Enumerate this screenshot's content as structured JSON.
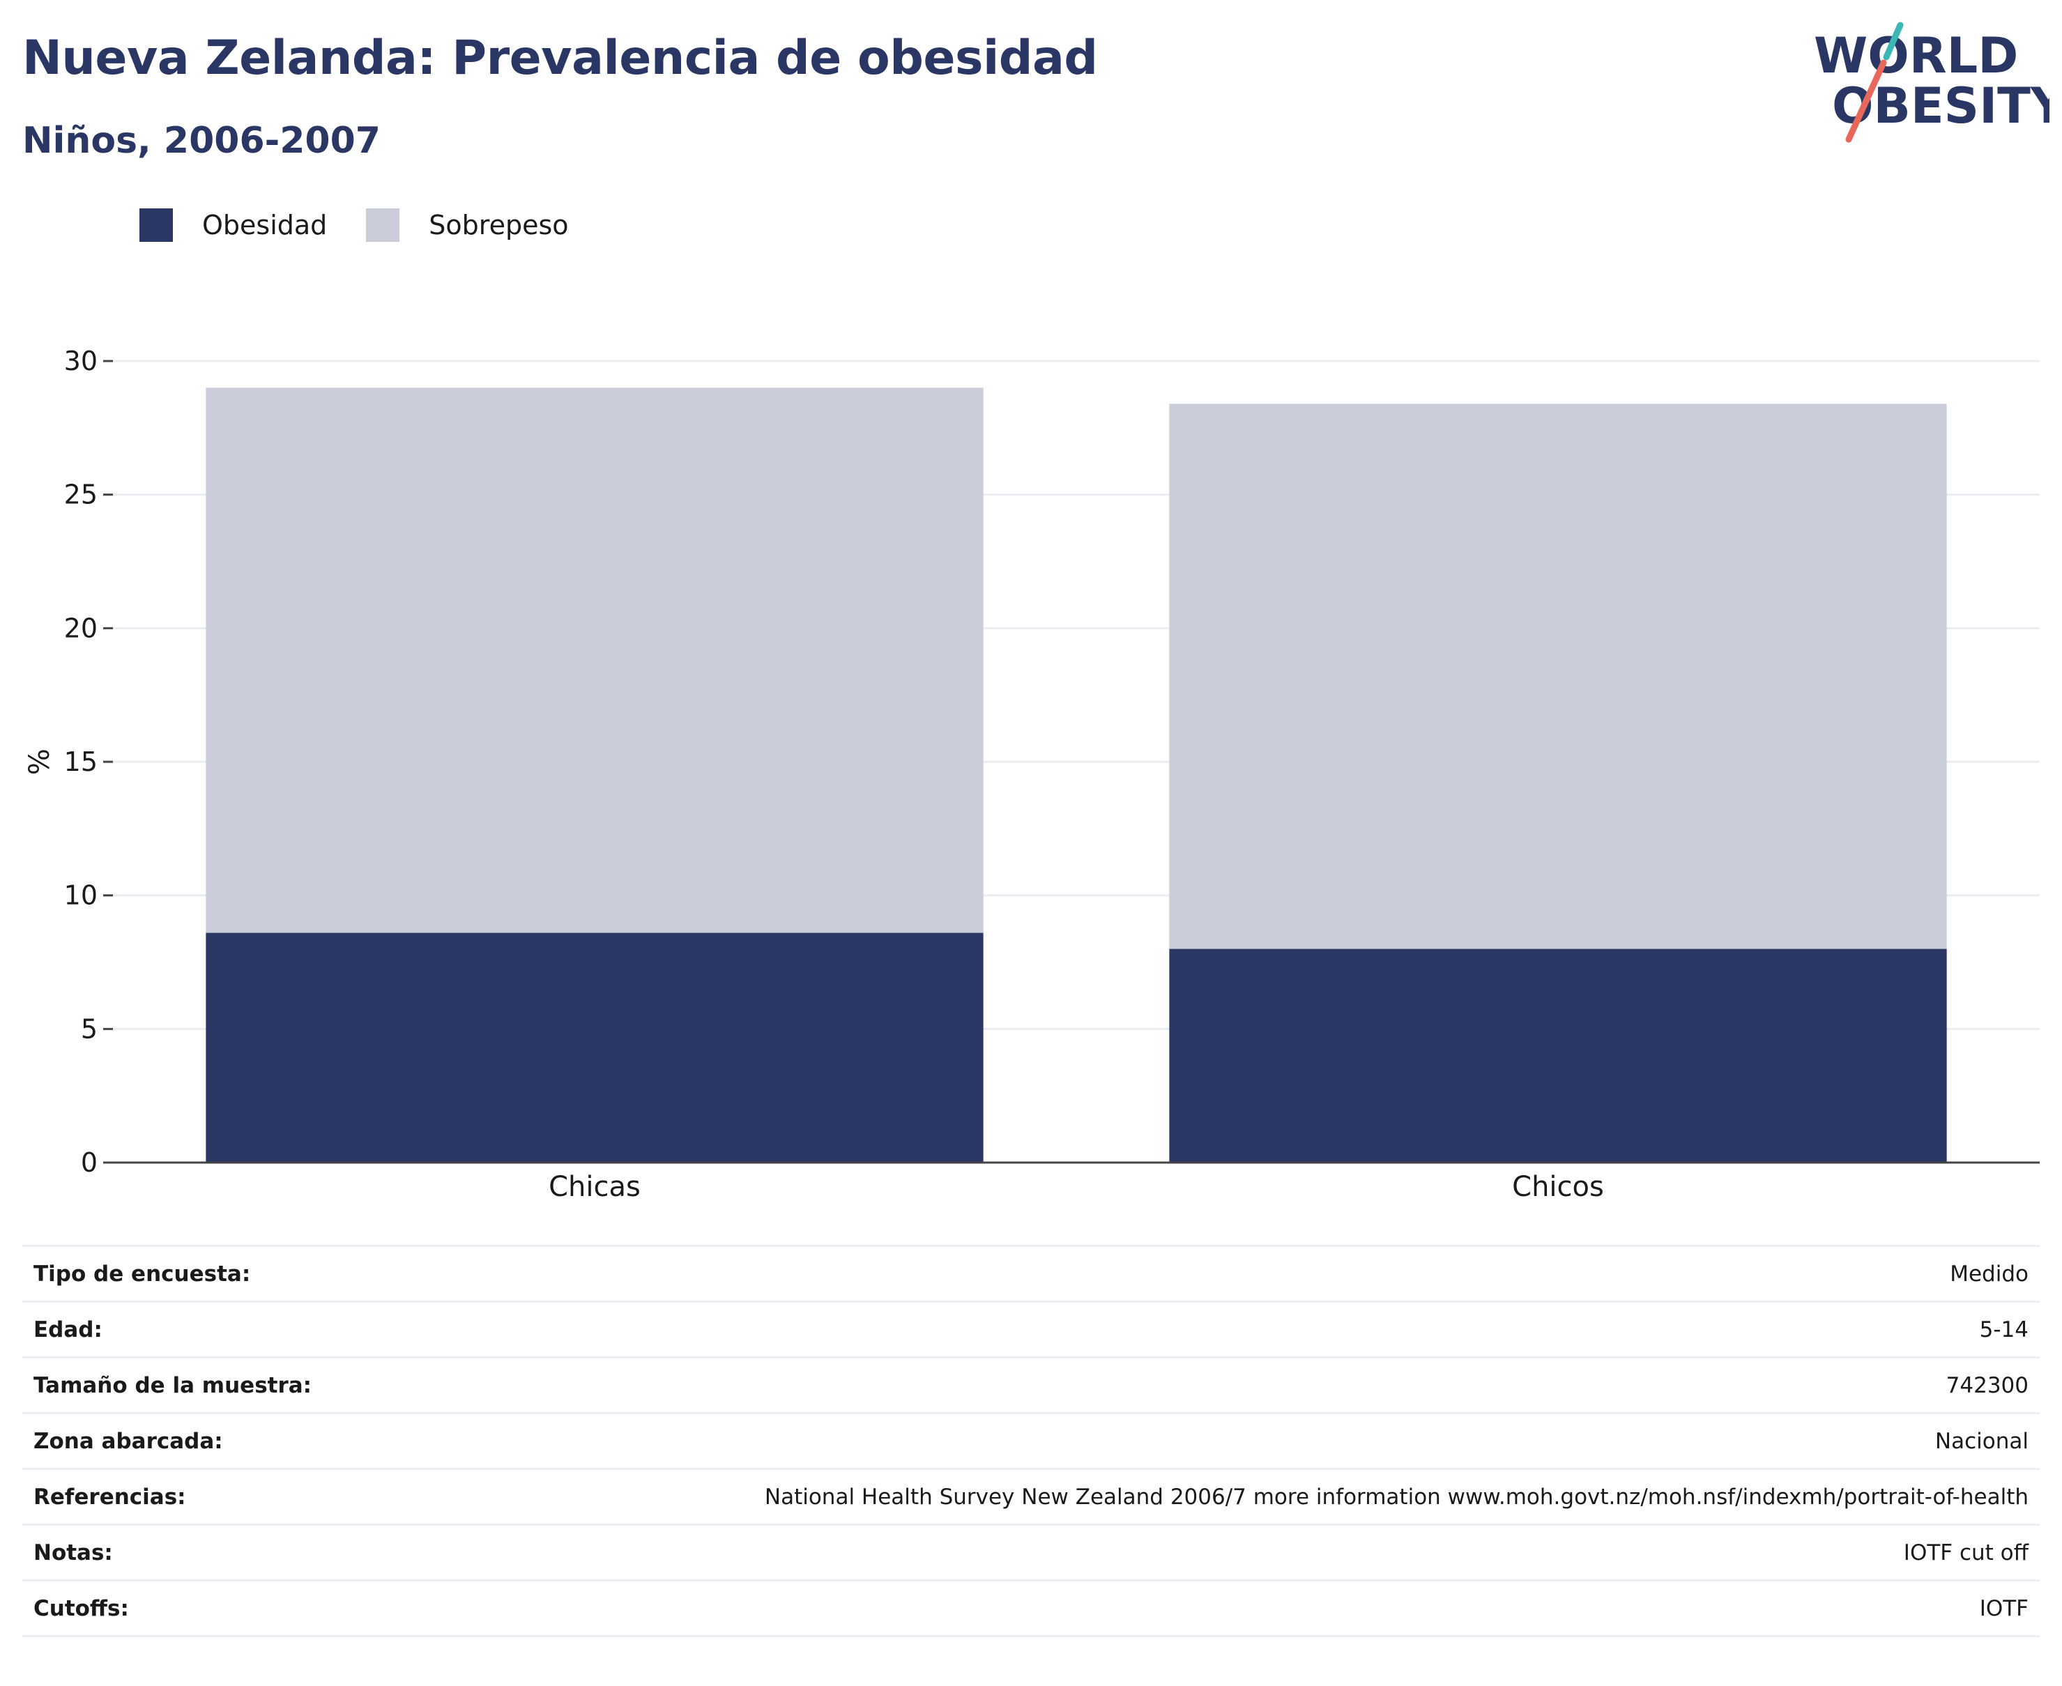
{
  "header": {
    "title": "Nueva Zelanda: Prevalencia de obesidad",
    "subtitle": "Niños, 2006-2007"
  },
  "logo": {
    "line1": "WORLD",
    "line2": "OBESITY",
    "colors": {
      "text": "#2a3664",
      "slash_top": "#3bb8b5",
      "slash_bottom": "#e8695c"
    }
  },
  "legend": {
    "items": [
      {
        "label": "Obesidad",
        "color": "#2a3664"
      },
      {
        "label": "Sobrepeso",
        "color": "#cacdd9"
      }
    ]
  },
  "chart_data": {
    "type": "bar",
    "stacked": true,
    "categories": [
      "Chicas",
      "Chicos"
    ],
    "series": [
      {
        "name": "Obesidad",
        "values": [
          8.6,
          8.0
        ],
        "color": "#2a3664"
      },
      {
        "name": "Sobrepeso",
        "values": [
          20.4,
          20.4
        ],
        "color": "#cacdd9"
      }
    ],
    "ylabel": "%",
    "ylim": [
      0,
      30
    ],
    "yticks": [
      0,
      5,
      10,
      15,
      20,
      25,
      30
    ],
    "grid": true,
    "legend_position": "top-left"
  },
  "info": {
    "rows": [
      {
        "key": "Tipo de encuesta:",
        "value": "Medido"
      },
      {
        "key": "Edad:",
        "value": "5-14"
      },
      {
        "key": "Tamaño de la muestra:",
        "value": "742300"
      },
      {
        "key": "Zona abarcada:",
        "value": "Nacional"
      },
      {
        "key": "Referencias:",
        "value": "National Health Survey New Zealand 2006/7 more information www.moh.govt.nz/moh.nsf/indexmh/portrait-of-health"
      },
      {
        "key": "Notas:",
        "value": "IOTF cut off"
      },
      {
        "key": "Cutoffs:",
        "value": "IOTF"
      }
    ]
  }
}
